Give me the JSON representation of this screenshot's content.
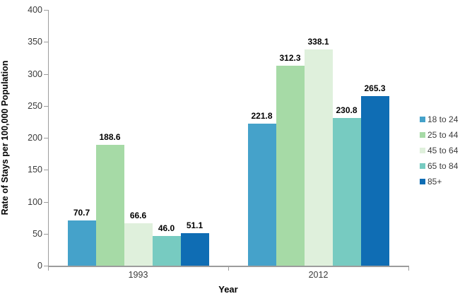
{
  "chart_data": {
    "type": "bar",
    "categories": [
      "1993",
      "2012"
    ],
    "series": [
      {
        "name": "18 to 24",
        "color": "#45a2ca",
        "values": [
          70.7,
          221.8
        ]
      },
      {
        "name": "25 to 44",
        "color": "#a6daa6",
        "values": [
          188.6,
          312.3
        ]
      },
      {
        "name": "45 to 64",
        "color": "#dff0dc",
        "values": [
          66.6,
          338.1
        ]
      },
      {
        "name": "65 to 84",
        "color": "#77cbc1",
        "values": [
          46.0,
          230.8
        ]
      },
      {
        "name": "85+",
        "color": "#0f6db4",
        "values": [
          51.1,
          265.3
        ]
      }
    ],
    "title": "",
    "xlabel": "Year",
    "ylabel": "Rate of Stays per 100,000 Population",
    "ylim": [
      0,
      400
    ],
    "yticks": [
      0,
      50,
      100,
      150,
      200,
      250,
      300,
      350,
      400
    ],
    "value_label_decimals": 1,
    "grid": false,
    "legend_position": "right",
    "axis_color": "#9c9c9c",
    "text_color": "#3b3b3b",
    "label_color": "#000000"
  }
}
